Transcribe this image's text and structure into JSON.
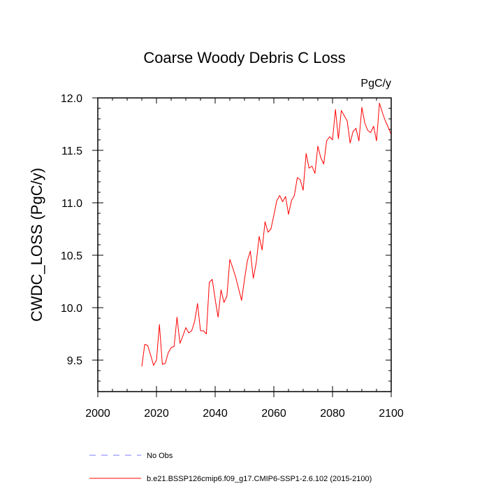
{
  "chart_data": {
    "type": "line",
    "title": "Coarse Woody Debris C Loss",
    "units": "PgC/y",
    "xlabel": "",
    "ylabel": "CWDC_LOSS  (PgC/y)",
    "xlim": [
      2000,
      2100
    ],
    "ylim": [
      9.2,
      12.0
    ],
    "xticks": [
      2000,
      2020,
      2040,
      2060,
      2080,
      2100
    ],
    "yticks": [
      9.5,
      10.0,
      10.5,
      11.0,
      11.5,
      12.0
    ],
    "xtick_labels": [
      "2000",
      "2020",
      "2040",
      "2060",
      "2080",
      "2100"
    ],
    "ytick_labels": [
      "9.5",
      "10.0",
      "10.5",
      "11.0",
      "11.5",
      "12.0"
    ],
    "legend": {
      "placement": "bottom",
      "items": [
        {
          "label": "No Obs",
          "color": "#7b7bff",
          "style": "dashed"
        },
        {
          "label": "b.e21.BSSP126cmip6.f09_g17.CMIP6-SSP1-2.6.102 (2015-2100)",
          "color": "#ff0000",
          "style": "solid"
        }
      ]
    },
    "series": [
      {
        "name": "b.e21.BSSP126cmip6.f09_g17.CMIP6-SSP1-2.6.102 (2015-2100)",
        "color": "#ff0000",
        "x": [
          2015,
          2016,
          2017,
          2018,
          2019,
          2020,
          2021,
          2022,
          2023,
          2024,
          2025,
          2026,
          2027,
          2028,
          2029,
          2030,
          2031,
          2032,
          2033,
          2034,
          2035,
          2036,
          2037,
          2038,
          2039,
          2040,
          2041,
          2042,
          2043,
          2044,
          2045,
          2046,
          2047,
          2048,
          2049,
          2050,
          2051,
          2052,
          2053,
          2054,
          2055,
          2056,
          2057,
          2058,
          2059,
          2060,
          2061,
          2062,
          2063,
          2064,
          2065,
          2066,
          2067,
          2068,
          2069,
          2070,
          2071,
          2072,
          2073,
          2074,
          2075,
          2076,
          2077,
          2078,
          2079,
          2080,
          2081,
          2082,
          2083,
          2084,
          2085,
          2086,
          2087,
          2088,
          2089,
          2090,
          2091,
          2092,
          2093,
          2094,
          2095,
          2096,
          2097,
          2098,
          2099,
          2100
        ],
        "values": [
          9.44,
          9.65,
          9.64,
          9.55,
          9.45,
          9.5,
          9.84,
          9.46,
          9.47,
          9.57,
          9.62,
          9.63,
          9.91,
          9.66,
          9.73,
          9.81,
          9.76,
          9.78,
          9.87,
          10.04,
          9.78,
          9.78,
          9.75,
          10.24,
          10.27,
          10.08,
          9.91,
          10.17,
          10.05,
          10.11,
          10.46,
          10.38,
          10.29,
          10.18,
          10.07,
          10.27,
          10.45,
          10.54,
          10.28,
          10.43,
          10.68,
          10.55,
          10.82,
          10.72,
          10.75,
          10.88,
          11.02,
          11.07,
          11.01,
          11.06,
          10.89,
          11.02,
          11.07,
          11.24,
          11.22,
          11.12,
          11.47,
          11.33,
          11.35,
          11.28,
          11.54,
          11.43,
          11.37,
          11.59,
          11.63,
          11.6,
          11.89,
          11.61,
          11.88,
          11.83,
          11.78,
          11.57,
          11.68,
          11.71,
          11.59,
          11.91,
          11.76,
          11.69,
          11.67,
          11.73,
          11.59,
          11.95,
          11.86,
          11.78,
          11.72,
          11.65
        ]
      }
    ]
  }
}
